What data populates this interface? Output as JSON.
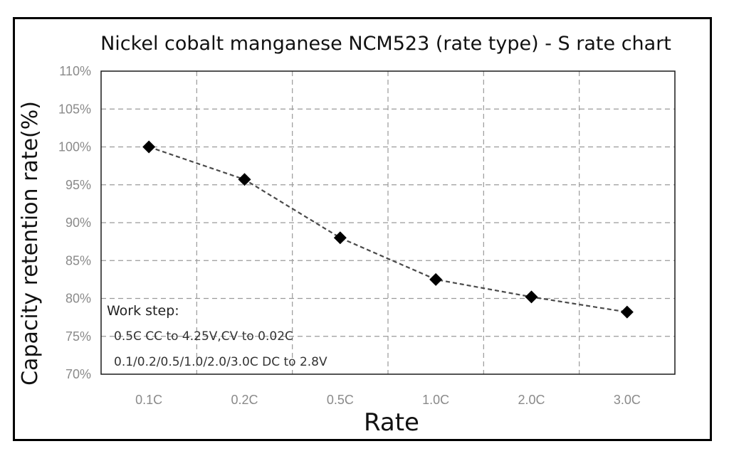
{
  "chart_data": {
    "type": "line",
    "title": "Nickel cobalt manganese NCM523 (rate type) - S rate chart",
    "xlabel": "Rate",
    "ylabel": "Capacity retention rate(%)",
    "categories": [
      "0.1C",
      "0.2C",
      "0.5C",
      "1.0C",
      "2.0C",
      "3.0C"
    ],
    "series": [
      {
        "name": "Capacity retention",
        "values": [
          100.0,
          95.7,
          88.0,
          82.5,
          80.2,
          78.2
        ],
        "color": "#000000",
        "line_color": "#4a4a4a",
        "line_style": "dashed",
        "marker": "diamond"
      }
    ],
    "ylim": [
      70,
      110
    ],
    "yticks": [
      70,
      75,
      80,
      85,
      90,
      95,
      100,
      105,
      110
    ],
    "ytick_labels": [
      "70%",
      "75%",
      "80%",
      "85%",
      "90%",
      "95%",
      "100%",
      "105%",
      "110%"
    ],
    "grid": "dashed",
    "grid_color": "#9a9a9a",
    "annotation": {
      "heading": "Work step:",
      "lines": [
        "0.5C CC to 4.25V,CV to 0.02C",
        "0.1/0.2/0.5/1.0/2.0/3.0C DC to 2.8V"
      ]
    }
  }
}
